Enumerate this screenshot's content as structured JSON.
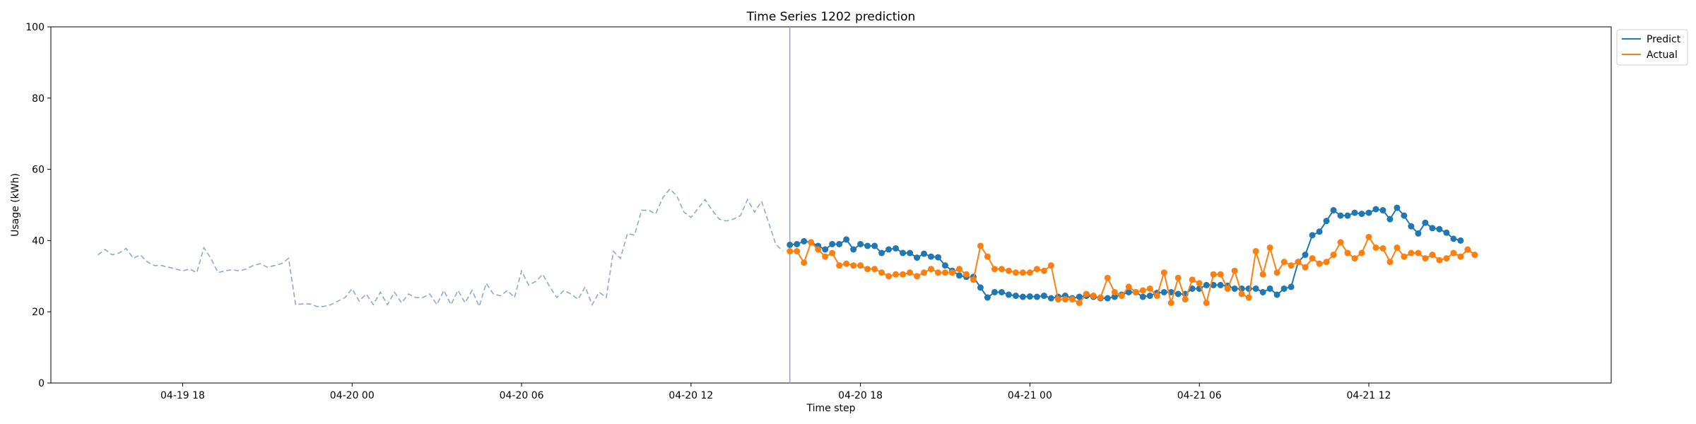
{
  "chart_data": {
    "type": "line",
    "title": "Time Series 1202 prediction",
    "xlabel": "Time step",
    "ylabel": "Usage (kWh)",
    "ylim": [
      0,
      100
    ],
    "yticks": [
      0,
      20,
      40,
      60,
      80,
      100
    ],
    "xlim": [
      "2024-04-19 13:20",
      "2024-04-21 20:35"
    ],
    "xticks": [
      "2024-04-19 18:00",
      "2024-04-20 00:00",
      "2024-04-20 06:00",
      "2024-04-20 12:00",
      "2024-04-20 18:00",
      "2024-04-21 00:00",
      "2024-04-21 06:00",
      "2024-04-21 12:00"
    ],
    "xtick_labels": [
      "04-19 18",
      "04-20 00",
      "04-20 06",
      "04-20 12",
      "04-20 18",
      "04-21 00",
      "04-21 06",
      "04-21 12"
    ],
    "forecast_start": "2024-04-20 15:30",
    "grid": false,
    "legend_position": "upper right, outside plot",
    "history": {
      "start": "2024-04-19 15:00",
      "step_minutes": 15,
      "color": "#8fa9cc",
      "style": "dashed",
      "values": [
        36,
        37.5,
        36,
        36.5,
        37.8,
        35,
        36,
        34,
        33,
        33,
        32.5,
        32,
        31.5,
        32,
        31,
        38,
        35,
        31,
        31.5,
        31.8,
        31.5,
        32,
        33,
        33.5,
        32.5,
        33,
        33.5,
        35,
        22,
        22.2,
        22.2,
        21.5,
        21.5,
        22,
        23,
        24,
        26.5,
        23,
        25,
        22,
        25.5,
        22,
        25.5,
        22.5,
        25,
        24,
        24,
        25,
        22,
        26,
        22,
        26,
        22.5,
        26,
        21.5,
        28,
        25,
        24.5,
        26,
        24,
        31.5,
        27.5,
        28.5,
        30.5,
        27,
        24,
        26,
        25,
        23.5,
        27,
        22,
        25.5,
        24,
        37,
        35,
        42,
        41.5,
        48.5,
        48.5,
        47.5,
        52,
        54.5,
        52.5,
        48,
        46.5,
        49,
        51.5,
        48.5,
        46,
        45.5,
        46,
        47,
        51.5,
        48,
        51,
        45,
        39,
        37
      ]
    },
    "series": [
      {
        "name": "Predict",
        "color": "#1f77b4",
        "start": "2024-04-20 15:30",
        "step_minutes": 15,
        "values": [
          38.8,
          39,
          39.8,
          39.5,
          38.5,
          37.5,
          39,
          39,
          40.3,
          37.5,
          39,
          38.5,
          38.5,
          36.5,
          37.5,
          37.8,
          36.5,
          36.5,
          35.2,
          36.3,
          35.5,
          35.3,
          33,
          31.5,
          30.2,
          29.8,
          29.8,
          26.8,
          24,
          25.5,
          25.5,
          24.8,
          24.5,
          24.2,
          24.3,
          24.2,
          24.5,
          23.8,
          24.2,
          24.5,
          23.8,
          24.2,
          24.5,
          24.2,
          23.8,
          23.8,
          24.2,
          24.8,
          25.5,
          25.5,
          24.2,
          24.5,
          25.3,
          25.5,
          25.5,
          25,
          25,
          26.5,
          26.5,
          27.5,
          27.5,
          27.5,
          27.3,
          26.5,
          26.5,
          26.5,
          26.5,
          25.5,
          26.5,
          24.8,
          26.5,
          27,
          34,
          36,
          41.5,
          42.5,
          45.5,
          48.5,
          47,
          47,
          47.8,
          47.5,
          47.8,
          48.8,
          48.5,
          46,
          49.2,
          47,
          44,
          42,
          45,
          43.5,
          43.2,
          42.2,
          40.5,
          40
        ]
      },
      {
        "name": "Actual",
        "color": "#ff7f0e",
        "start": "2024-04-20 15:30",
        "step_minutes": 15,
        "values": [
          37,
          37,
          33.8,
          39.5,
          37.5,
          35.5,
          36.5,
          33,
          33.5,
          33,
          33,
          32,
          32,
          31,
          30,
          30.5,
          30.5,
          31,
          30,
          31,
          32,
          31,
          31,
          31,
          32,
          30.5,
          29,
          38.5,
          35.5,
          32,
          32,
          31.5,
          31,
          31,
          31,
          32,
          31.5,
          33,
          23.5,
          23.5,
          23.5,
          22.5,
          25,
          24.5,
          24,
          29.5,
          25.5,
          24.5,
          27,
          25.5,
          26,
          26.5,
          24.5,
          31,
          22.5,
          29.5,
          23.5,
          29,
          28,
          22.5,
          30.5,
          30.5,
          26.5,
          31.5,
          25,
          24,
          37,
          30.5,
          38,
          31,
          34,
          33,
          34,
          32.5,
          35,
          33.5,
          34,
          36,
          39.5,
          36.5,
          35,
          36.5,
          41,
          38,
          37.8,
          34,
          38,
          35.5,
          36.5,
          36.5,
          35,
          36,
          34.5,
          35,
          36.5,
          35.5,
          37.5,
          36
        ]
      }
    ]
  }
}
